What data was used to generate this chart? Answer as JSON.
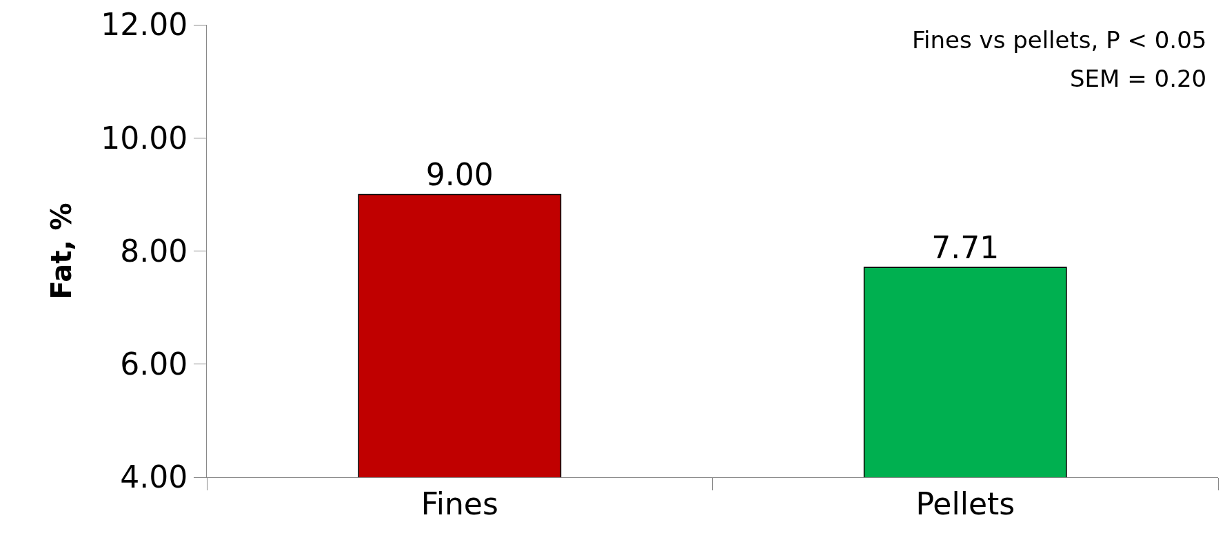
{
  "chart_data": {
    "type": "bar",
    "ylabel": "Fat, %",
    "categories": [
      "Fines",
      "Pellets"
    ],
    "values": [
      9.0,
      7.71
    ],
    "colors": [
      "#c00000",
      "#00b050"
    ],
    "value_labels": [
      "9.00",
      "7.71"
    ],
    "ylim": [
      4,
      12
    ],
    "yticks": [
      {
        "value": 4,
        "label": "4.00"
      },
      {
        "value": 6,
        "label": "6.00"
      },
      {
        "value": 8,
        "label": "8.00"
      },
      {
        "value": 10,
        "label": "10.00"
      },
      {
        "value": 12,
        "label": "12.00"
      }
    ],
    "annotations": [
      "Fines vs pellets, P < 0.05",
      "SEM = 0.20"
    ],
    "legend": false
  }
}
